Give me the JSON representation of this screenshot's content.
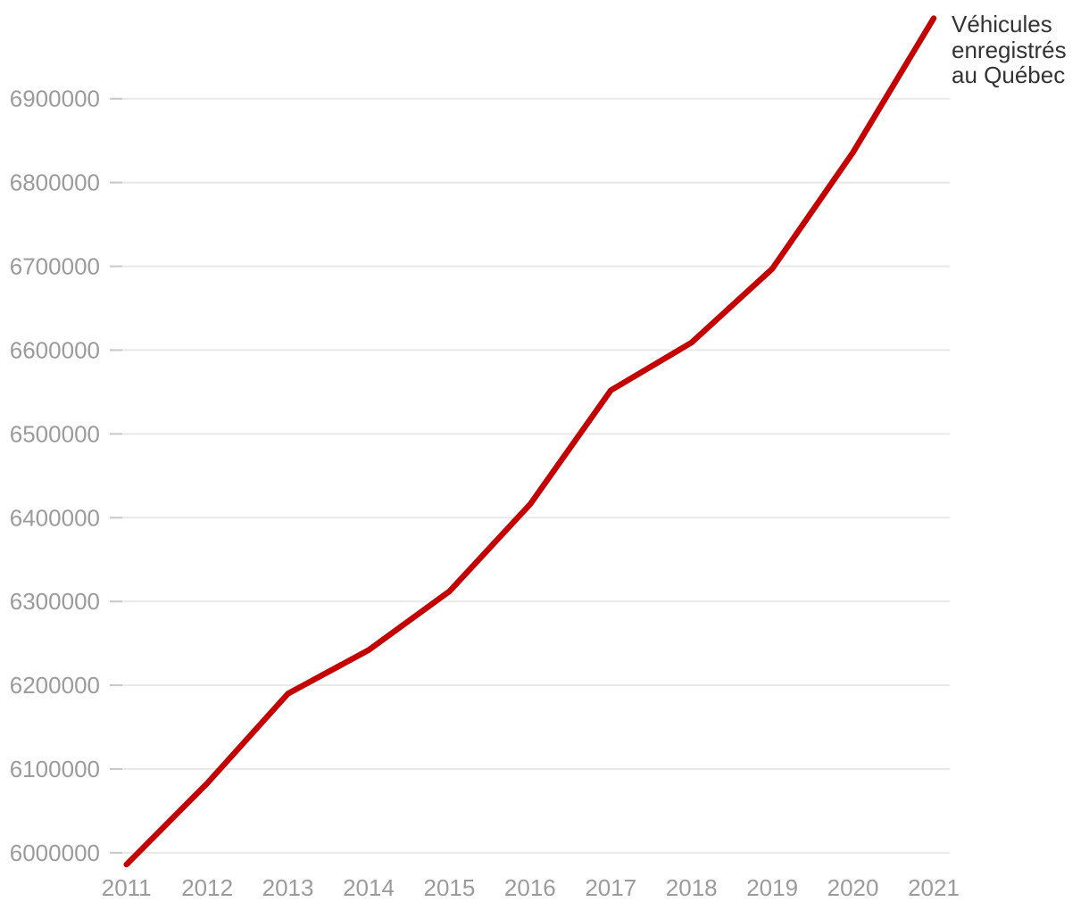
{
  "chart_data": {
    "type": "line",
    "title": "",
    "xlabel": "",
    "ylabel": "",
    "x": [
      2011,
      2012,
      2013,
      2014,
      2015,
      2016,
      2017,
      2018,
      2019,
      2020,
      2021
    ],
    "x_tick_labels": [
      "2011",
      "2012",
      "2013",
      "2014",
      "2015",
      "2016",
      "2017",
      "2018",
      "2019",
      "2020",
      "2021"
    ],
    "y_ticks": [
      6000000,
      6100000,
      6200000,
      6300000,
      6400000,
      6500000,
      6600000,
      6700000,
      6800000,
      6900000
    ],
    "y_tick_labels": [
      "6000000",
      "6100000",
      "6200000",
      "6300000",
      "6400000",
      "6500000",
      "6600000",
      "6700000",
      "6800000",
      "6900000"
    ],
    "grid": "horizontal",
    "legend_position": "end-of-line",
    "series": [
      {
        "name": "Véhicules enregistrés au Québec",
        "label_lines": [
          "Véhicules",
          "enregistrés",
          "au Québec"
        ],
        "color": "#c40000",
        "values": [
          5986000,
          6083000,
          6190000,
          6242000,
          6312000,
          6416000,
          6552000,
          6609000,
          6697000,
          6836000,
          6996000
        ]
      }
    ],
    "colors": {
      "line": "#c40000",
      "axis_text": "#9b9b9b",
      "gridline": "#e8e8e8",
      "tick": "#c9c9c9",
      "label_text": "#333333",
      "background": "#ffffff"
    }
  }
}
